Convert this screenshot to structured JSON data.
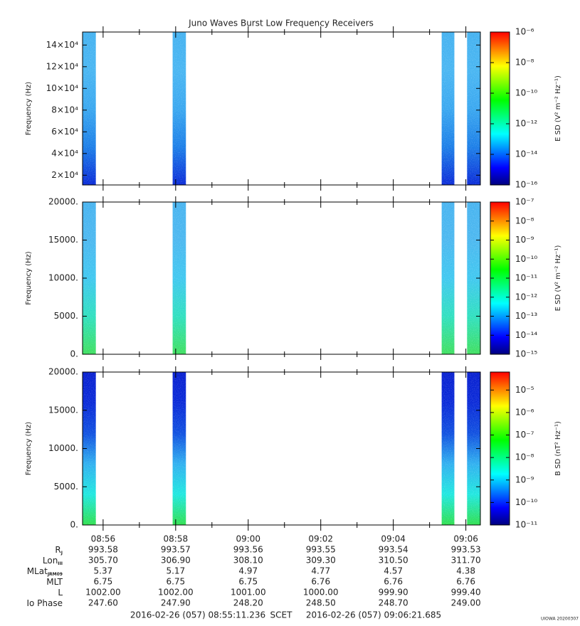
{
  "chart_data": [
    {
      "type": "spectrogram",
      "title": "Juno Waves Burst Low Frequency Receivers",
      "ylabel": "Frequency (Hz)",
      "zlabel": "E SD (V² m⁻² Hz⁻¹)",
      "xlim": [
        "08:55:26",
        "09:06:24"
      ],
      "xticks": [
        "08:56",
        "08:58",
        "09:00",
        "09:02",
        "09:04",
        "09:06"
      ],
      "ylim": [
        11000,
        152000
      ],
      "yticks": [
        {
          "value": 20000,
          "label": "2×10⁴"
        },
        {
          "value": 40000,
          "label": "4×10⁴"
        },
        {
          "value": 60000,
          "label": "6×10⁴"
        },
        {
          "value": 80000,
          "label": "8×10⁴"
        },
        {
          "value": 100000,
          "label": "10×10⁴"
        },
        {
          "value": 120000,
          "label": "12×10⁴"
        },
        {
          "value": 140000,
          "label": "14×10⁴"
        }
      ],
      "bursts": [
        [
          "08:55:26",
          "08:55:48"
        ],
        [
          "08:57:55",
          "08:58:17"
        ],
        [
          "09:05:20",
          "09:05:41"
        ],
        [
          "09:06:02",
          "09:06:24"
        ]
      ],
      "burst_colors": [
        "#0a2bd8",
        "#1c7fe8",
        "#3aa8f0",
        "#49b6f2",
        "#45b2f0"
      ],
      "zlim": [
        1e-16,
        1e-06
      ],
      "zscale": "log",
      "zticks": [
        {
          "value": 1e-16,
          "label": "10⁻¹⁶"
        },
        {
          "value": 1e-14,
          "label": "10⁻¹⁴"
        },
        {
          "value": 1e-12,
          "label": "10⁻¹²"
        },
        {
          "value": 1e-10,
          "label": "10⁻¹⁰"
        },
        {
          "value": 1e-08,
          "label": "10⁻⁸"
        },
        {
          "value": 1e-06,
          "label": "10⁻⁶"
        }
      ],
      "colormap": [
        "#000080",
        "#0000ff",
        "#0080ff",
        "#00ffff",
        "#00ff80",
        "#00ff00",
        "#80ff00",
        "#ffff00",
        "#ff8000",
        "#ff0000"
      ]
    },
    {
      "type": "spectrogram",
      "ylabel": "Frequency (Hz)",
      "zlabel": "E SD (V² m⁻² Hz⁻¹)",
      "xlim": [
        "08:55:26",
        "09:06:24"
      ],
      "xticks": [
        "08:56",
        "08:58",
        "09:00",
        "09:02",
        "09:04",
        "09:06"
      ],
      "ylim": [
        0,
        20000
      ],
      "yticks": [
        {
          "value": 0,
          "label": "0."
        },
        {
          "value": 5000,
          "label": "5000."
        },
        {
          "value": 10000,
          "label": "10000."
        },
        {
          "value": 15000,
          "label": "15000."
        },
        {
          "value": 20000,
          "label": "20000."
        }
      ],
      "bursts": [
        [
          "08:55:26",
          "08:55:48"
        ],
        [
          "08:57:55",
          "08:58:17"
        ],
        [
          "09:05:20",
          "09:05:41"
        ],
        [
          "09:06:02",
          "09:06:24"
        ]
      ],
      "burst_colors": [
        "#40e060",
        "#30e0c0",
        "#40c8f0",
        "#4cb8f0",
        "#48b4f0"
      ],
      "zlim": [
        1e-15,
        1e-07
      ],
      "zscale": "log",
      "zticks": [
        {
          "value": 1e-15,
          "label": "10⁻¹⁵"
        },
        {
          "value": 1e-14,
          "label": "10⁻¹⁴"
        },
        {
          "value": 1e-13,
          "label": "10⁻¹³"
        },
        {
          "value": 1e-12,
          "label": "10⁻¹²"
        },
        {
          "value": 1e-11,
          "label": "10⁻¹¹"
        },
        {
          "value": 1e-10,
          "label": "10⁻¹⁰"
        },
        {
          "value": 1e-09,
          "label": "10⁻⁹"
        },
        {
          "value": 1e-08,
          "label": "10⁻⁸"
        },
        {
          "value": 1e-07,
          "label": "10⁻⁷"
        }
      ],
      "colormap": [
        "#000080",
        "#0000ff",
        "#0080ff",
        "#00ffff",
        "#00ff80",
        "#00ff00",
        "#80ff00",
        "#ffff00",
        "#ff8000",
        "#ff0000"
      ]
    },
    {
      "type": "spectrogram",
      "ylabel": "Frequency (Hz)",
      "zlabel": "B SD (nT² Hz⁻¹)",
      "xlim": [
        "08:55:26",
        "09:06:24"
      ],
      "xticks": [
        "08:56",
        "08:58",
        "09:00",
        "09:02",
        "09:04",
        "09:06"
      ],
      "ylim": [
        0,
        20000
      ],
      "yticks": [
        {
          "value": 0,
          "label": "0."
        },
        {
          "value": 5000,
          "label": "5000."
        },
        {
          "value": 10000,
          "label": "10000."
        },
        {
          "value": 15000,
          "label": "15000."
        },
        {
          "value": 20000,
          "label": "20000."
        }
      ],
      "bursts": [
        [
          "08:55:26",
          "08:55:48"
        ],
        [
          "08:57:55",
          "08:58:17"
        ],
        [
          "09:05:20",
          "09:05:41"
        ],
        [
          "09:06:02",
          "09:06:24"
        ]
      ],
      "burst_colors": [
        "#30e050",
        "#20e8e0",
        "#30b0f0",
        "#1050e0",
        "#0a2ad8",
        "#0820d0"
      ],
      "zlim": [
        1e-11,
        6.3e-05
      ],
      "zscale": "log",
      "zticks": [
        {
          "value": 1e-11,
          "label": "10⁻¹¹"
        },
        {
          "value": 1e-10,
          "label": "10⁻¹⁰"
        },
        {
          "value": 1e-09,
          "label": "10⁻⁹"
        },
        {
          "value": 1e-08,
          "label": "10⁻⁸"
        },
        {
          "value": 1e-07,
          "label": "10⁻⁷"
        },
        {
          "value": 1e-06,
          "label": "10⁻⁶"
        },
        {
          "value": 1e-05,
          "label": "10⁻⁵"
        }
      ],
      "colormap": [
        "#000080",
        "#0000ff",
        "#0080ff",
        "#00ffff",
        "#00ff80",
        "#00ff00",
        "#80ff00",
        "#ffff00",
        "#ff8000",
        "#ff0000"
      ]
    }
  ],
  "ephemeris": {
    "rows": [
      {
        "label": "R",
        "sub": "J",
        "values": [
          "993.58",
          "993.57",
          "993.56",
          "993.55",
          "993.54",
          "993.53"
        ]
      },
      {
        "label": "Lon",
        "sub": "III",
        "values": [
          "305.70",
          "306.90",
          "308.10",
          "309.30",
          "310.50",
          "311.70"
        ]
      },
      {
        "label": "MLat",
        "sub": "JRM09",
        "values": [
          "5.37",
          "5.17",
          "4.97",
          "4.77",
          "4.57",
          "4.38"
        ]
      },
      {
        "label": "MLT",
        "values": [
          "6.75",
          "6.75",
          "6.75",
          "6.76",
          "6.76",
          "6.76"
        ]
      },
      {
        "label": "L",
        "values": [
          "1002.00",
          "1002.00",
          "1001.00",
          "1000.00",
          "999.90",
          "999.40"
        ]
      },
      {
        "label": "Io Phase",
        "values": [
          "247.60",
          "247.90",
          "248.20",
          "248.50",
          "248.70",
          "249.00"
        ]
      }
    ]
  },
  "footer": {
    "start": "2016-02-26 (057) 08:55:11.236",
    "frame": "SCET",
    "end": "2016-02-26 (057) 09:06:21.685",
    "stamp": "UIOWA 20200307"
  }
}
